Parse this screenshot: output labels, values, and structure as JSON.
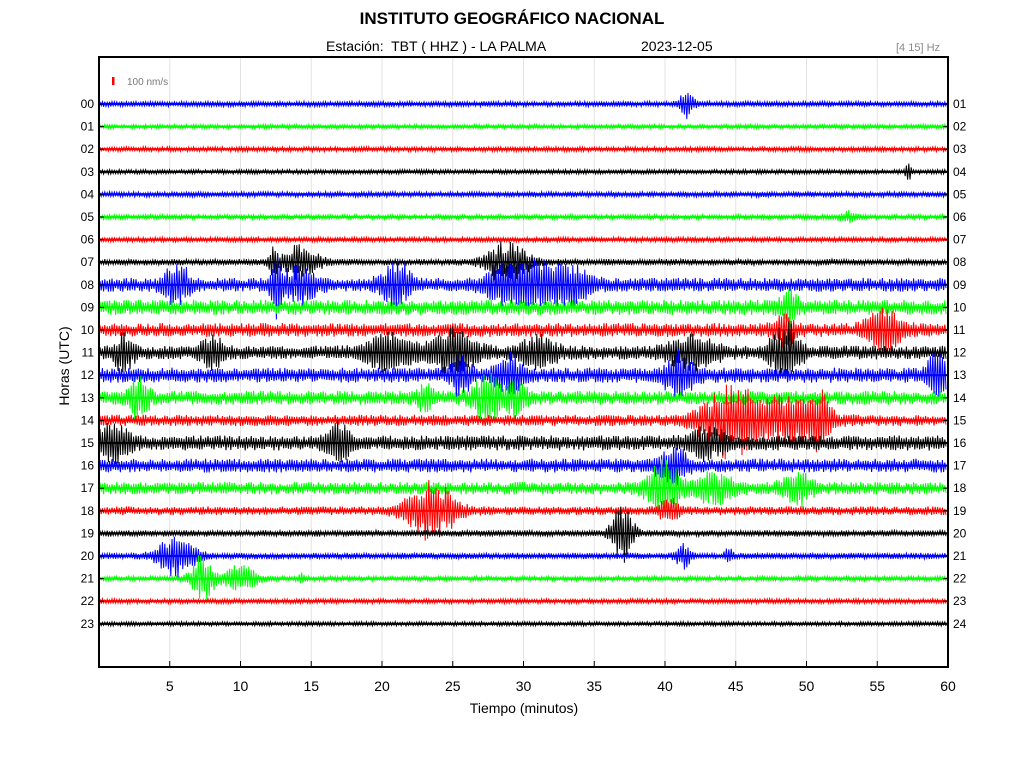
{
  "header": {
    "title": "INSTITUTO GEOGRÁFICO NACIONAL",
    "station": "Estación:  TBT ( HHZ ) - LA PALMA",
    "date": "2023-12-05",
    "band": "[4 15] Hz"
  },
  "chart_data": {
    "type": "line",
    "title": "INSTITUTO GEOGRÁFICO NACIONAL",
    "xlabel": "Tiempo (minutos)",
    "ylabel": "Horas (UTC)",
    "xlim": [
      0,
      60
    ],
    "x_ticks": [
      "5",
      "10",
      "15",
      "20",
      "25",
      "30",
      "35",
      "40",
      "45",
      "50",
      "55",
      "60"
    ],
    "left_ticks": [
      "00",
      "01",
      "02",
      "03",
      "04",
      "05",
      "06",
      "07",
      "08",
      "09",
      "10",
      "11",
      "12",
      "13",
      "14",
      "15",
      "16",
      "17",
      "18",
      "19",
      "20",
      "21",
      "22",
      "23"
    ],
    "right_ticks": [
      "01",
      "02",
      "03",
      "04",
      "05",
      "06",
      "07",
      "08",
      "09",
      "10",
      "11",
      "12",
      "13",
      "14",
      "15",
      "16",
      "17",
      "18",
      "19",
      "20",
      "21",
      "22",
      "23",
      "24"
    ],
    "scale_label": "100 nm/s",
    "colors": [
      "#0000ff",
      "#00ff00",
      "#ff0000",
      "#000000"
    ],
    "grid": "vertical",
    "noise": [
      0.22,
      0.18,
      0.2,
      0.18,
      0.22,
      0.2,
      0.2,
      0.25,
      0.55,
      0.6,
      0.55,
      0.55,
      0.6,
      0.55,
      0.45,
      0.6,
      0.55,
      0.5,
      0.35,
      0.25,
      0.25,
      0.2,
      0.2,
      0.18
    ],
    "events": [
      {
        "hour": 0,
        "minute": 41.5,
        "amp": 1.0,
        "dur": 0.8
      },
      {
        "hour": 3,
        "minute": 57.2,
        "amp": 0.8,
        "dur": 0.3
      },
      {
        "hour": 5,
        "minute": 53,
        "amp": 0.4,
        "dur": 1.0
      },
      {
        "hour": 7,
        "minute": 12.3,
        "amp": 1.4,
        "dur": 0.4
      },
      {
        "hour": 7,
        "minute": 14.2,
        "amp": 1.2,
        "dur": 2.0
      },
      {
        "hour": 7,
        "minute": 28.8,
        "amp": 1.6,
        "dur": 2.2
      },
      {
        "hour": 8,
        "minute": 5.5,
        "amp": 1.5,
        "dur": 1.3
      },
      {
        "hour": 8,
        "minute": 12.5,
        "amp": 2.5,
        "dur": 0.5
      },
      {
        "hour": 8,
        "minute": 14.2,
        "amp": 1.3,
        "dur": 1.8
      },
      {
        "hour": 8,
        "minute": 21,
        "amp": 1.6,
        "dur": 1.6
      },
      {
        "hour": 8,
        "minute": 29,
        "amp": 1.5,
        "dur": 2.5
      },
      {
        "hour": 8,
        "minute": 31.5,
        "amp": 1.4,
        "dur": 2.5
      },
      {
        "hour": 8,
        "minute": 33.5,
        "amp": 1.1,
        "dur": 2.0
      },
      {
        "hour": 9,
        "minute": 48.8,
        "amp": 1.2,
        "dur": 1.0
      },
      {
        "hour": 10,
        "minute": 55.5,
        "amp": 1.5,
        "dur": 1.8
      },
      {
        "hour": 10,
        "minute": 48.5,
        "amp": 1.0,
        "dur": 1.2
      },
      {
        "hour": 11,
        "minute": 1.8,
        "amp": 1.4,
        "dur": 1.0
      },
      {
        "hour": 11,
        "minute": 8,
        "amp": 1.2,
        "dur": 1.2
      },
      {
        "hour": 11,
        "minute": 20.5,
        "amp": 1.3,
        "dur": 2.5
      },
      {
        "hour": 11,
        "minute": 25,
        "amp": 1.6,
        "dur": 2.5
      },
      {
        "hour": 11,
        "minute": 31,
        "amp": 1.0,
        "dur": 2.0
      },
      {
        "hour": 11,
        "minute": 42,
        "amp": 1.2,
        "dur": 2.5
      },
      {
        "hour": 11,
        "minute": 48.5,
        "amp": 2.0,
        "dur": 1.5
      },
      {
        "hour": 12,
        "minute": 25.5,
        "amp": 1.6,
        "dur": 1.0
      },
      {
        "hour": 12,
        "minute": 29,
        "amp": 1.3,
        "dur": 1.5
      },
      {
        "hour": 12,
        "minute": 41,
        "amp": 1.6,
        "dur": 1.5
      },
      {
        "hour": 12,
        "minute": 59.3,
        "amp": 1.8,
        "dur": 1.0
      },
      {
        "hour": 13,
        "minute": 2.8,
        "amp": 1.8,
        "dur": 1.0
      },
      {
        "hour": 13,
        "minute": 27.5,
        "amp": 1.7,
        "dur": 1.6
      },
      {
        "hour": 13,
        "minute": 29.5,
        "amp": 1.3,
        "dur": 1.0
      },
      {
        "hour": 13,
        "minute": 23,
        "amp": 0.8,
        "dur": 1.0
      },
      {
        "hour": 14,
        "minute": 44.5,
        "amp": 2.5,
        "dur": 3.0
      },
      {
        "hour": 14,
        "minute": 48.5,
        "amp": 1.6,
        "dur": 4.0
      },
      {
        "hour": 14,
        "minute": 51,
        "amp": 1.8,
        "dur": 1.0
      },
      {
        "hour": 15,
        "minute": 1,
        "amp": 1.5,
        "dur": 1.5
      },
      {
        "hour": 15,
        "minute": 17,
        "amp": 1.4,
        "dur": 1.3
      },
      {
        "hour": 15,
        "minute": 43,
        "amp": 1.0,
        "dur": 2.0
      },
      {
        "hour": 16,
        "minute": 40.5,
        "amp": 1.3,
        "dur": 1.5
      },
      {
        "hour": 17,
        "minute": 40,
        "amp": 2.0,
        "dur": 1.8
      },
      {
        "hour": 17,
        "minute": 43.5,
        "amp": 1.0,
        "dur": 2.0
      },
      {
        "hour": 17,
        "minute": 49.3,
        "amp": 1.3,
        "dur": 1.5
      },
      {
        "hour": 18,
        "minute": 23.5,
        "amp": 2.1,
        "dur": 2.6
      },
      {
        "hour": 18,
        "minute": 40.3,
        "amp": 0.8,
        "dur": 1.0
      },
      {
        "hour": 19,
        "minute": 37,
        "amp": 2.4,
        "dur": 1.1
      },
      {
        "hour": 20,
        "minute": 5.5,
        "amp": 1.5,
        "dur": 2.0
      },
      {
        "hour": 20,
        "minute": 41.3,
        "amp": 0.9,
        "dur": 0.8
      },
      {
        "hour": 20,
        "minute": 44.5,
        "amp": 0.5,
        "dur": 0.4
      },
      {
        "hour": 21,
        "minute": 7.3,
        "amp": 1.9,
        "dur": 1.2
      },
      {
        "hour": 21,
        "minute": 10,
        "amp": 1.0,
        "dur": 1.8
      },
      {
        "hour": 21,
        "minute": 14.3,
        "amp": 0.4,
        "dur": 0.3
      }
    ]
  }
}
